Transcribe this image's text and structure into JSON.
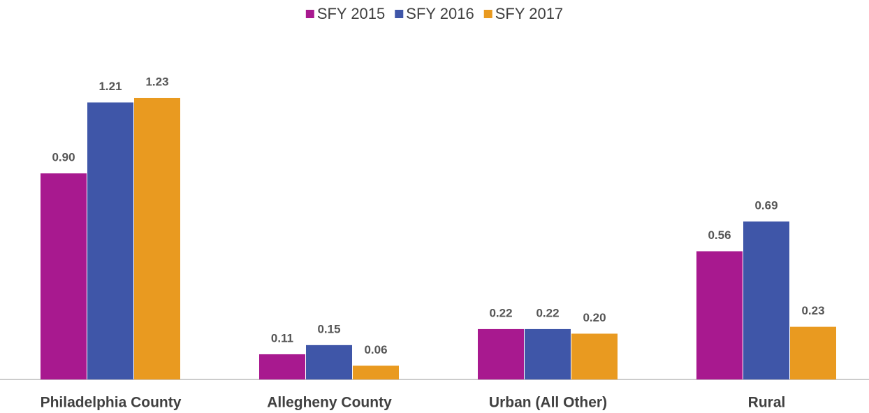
{
  "chart_data": {
    "type": "bar",
    "categories": [
      "Philadelphia County",
      "Allegheny County",
      "Urban (All Other)",
      "Rural"
    ],
    "series": [
      {
        "name": "SFY 2015",
        "color": "#a8198f",
        "values": [
          0.9,
          0.11,
          0.22,
          0.56
        ],
        "value_labels": [
          "0.90",
          "0.11",
          "0.22",
          "0.56"
        ]
      },
      {
        "name": "SFY 2016",
        "color": "#3f56a8",
        "values": [
          1.21,
          0.15,
          0.22,
          0.69
        ],
        "value_labels": [
          "1.21",
          "0.15",
          "0.22",
          "0.69"
        ]
      },
      {
        "name": "SFY 2017",
        "color": "#e99a20",
        "values": [
          1.23,
          0.06,
          0.2,
          0.23
        ],
        "value_labels": [
          "1.23",
          "0.06",
          "0.20",
          "0.23"
        ]
      }
    ],
    "legend": "top"
  }
}
